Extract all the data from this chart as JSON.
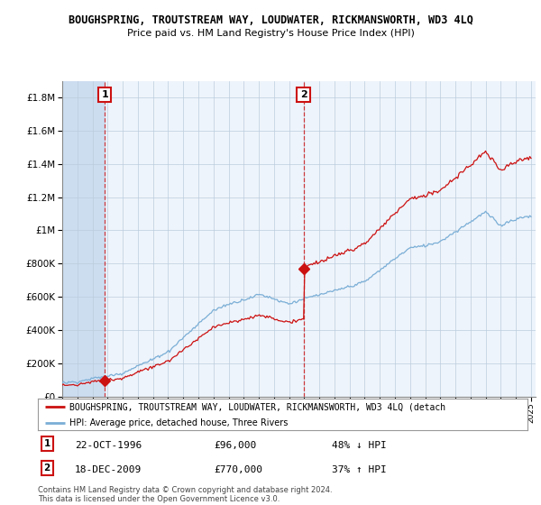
{
  "title": "BOUGHSPRING, TROUTSTREAM WAY, LOUDWATER, RICKMANSWORTH, WD3 4LQ",
  "subtitle": "Price paid vs. HM Land Registry's House Price Index (HPI)",
  "sale1_date": 1996.81,
  "sale1_price": 96000,
  "sale1_label": "1",
  "sale2_date": 2009.96,
  "sale2_price": 770000,
  "sale2_label": "2",
  "hpi_color": "#7aaed6",
  "price_color": "#cc1111",
  "annotation_box_color": "#cc1111",
  "grid_color": "#cccccc",
  "bg_blue": "#ddeeff",
  "hatch_bg": "#c8dff0",
  "background_color": "#ffffff",
  "ylim_min": 0,
  "ylim_max": 1900000,
  "legend_label_price": "BOUGHSPRING, TROUTSTREAM WAY, LOUDWATER, RICKMANSWORTH, WD3 4LQ (detach",
  "legend_label_hpi": "HPI: Average price, detached house, Three Rivers",
  "note1_num": "1",
  "note1_date": "22-OCT-1996",
  "note1_price": "£96,000",
  "note1_pct": "48% ↓ HPI",
  "note2_num": "2",
  "note2_date": "18-DEC-2009",
  "note2_price": "£770,000",
  "note2_pct": "37% ↑ HPI",
  "copyright": "Contains HM Land Registry data © Crown copyright and database right 2024.\nThis data is licensed under the Open Government Licence v3.0."
}
